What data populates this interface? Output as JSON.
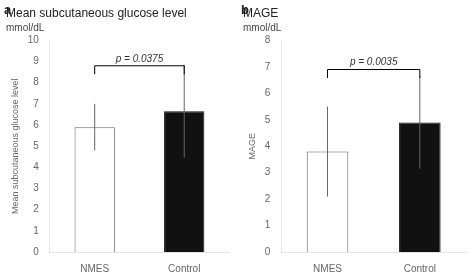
{
  "chart_data": [
    {
      "type": "bar",
      "panel_label": "a",
      "title": "Mean subcutaneous glucose level",
      "subtitle": "mmol/dL",
      "ylabel": "Mean subcutaneous glucose level",
      "categories": [
        "NMES",
        "Control"
      ],
      "values": [
        5.9,
        6.65
      ],
      "errors": [
        1.1,
        2.2
      ],
      "colors": [
        "#ffffff",
        "#111111"
      ],
      "edge_colors": [
        "#666666",
        "#111111"
      ],
      "ylim": [
        0,
        10
      ],
      "yticks": [
        0,
        1,
        2,
        3,
        4,
        5,
        6,
        7,
        8,
        9,
        10
      ],
      "grid": false,
      "annotations": [
        {
          "text": "p = 0.0375",
          "y": 8.8,
          "from": "NMES",
          "to": "Control"
        }
      ]
    },
    {
      "type": "bar",
      "panel_label": "b",
      "title": "MAGE",
      "subtitle": "mmol/dL",
      "ylabel": "MAGE",
      "categories": [
        "NMES",
        "Control"
      ],
      "values": [
        3.8,
        4.9
      ],
      "errors": [
        1.7,
        1.75
      ],
      "colors": [
        "#ffffff",
        "#111111"
      ],
      "edge_colors": [
        "#666666",
        "#111111"
      ],
      "ylim": [
        0,
        8
      ],
      "yticks": [
        0,
        1,
        2,
        3,
        4,
        5,
        6,
        7,
        8
      ],
      "grid": false,
      "annotations": [
        {
          "text": "p = 0.0035",
          "y": 6.9,
          "from": "NMES",
          "to": "Control"
        }
      ]
    }
  ]
}
